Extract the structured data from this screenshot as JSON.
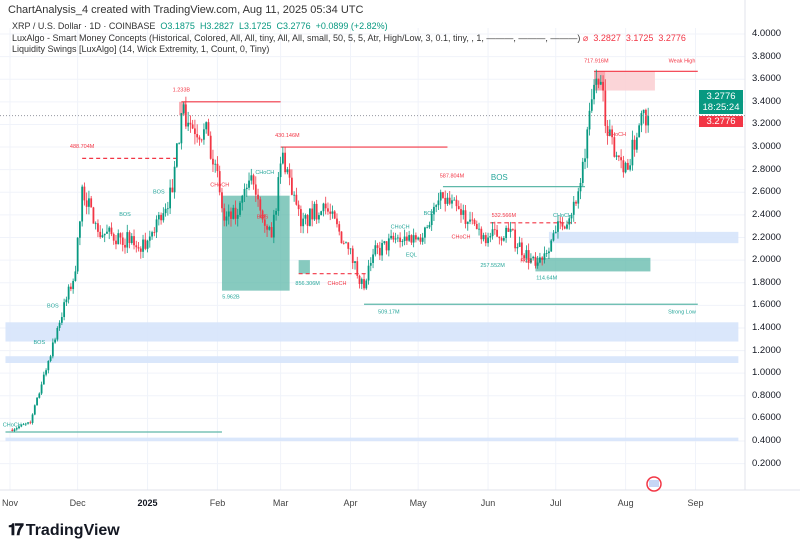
{
  "header": {
    "title": "ChartAnalysis_4 created with TradingView.com, Aug 11, 2025 05:34 UTC",
    "symbol": "XRP / U.S. Dollar · 1D · COINBASE",
    "open": "O3.1875",
    "high": "H3.2827",
    "low": "L3.1725",
    "close": "C3.2776",
    "change": "+0.0899 (+2.82%)",
    "indicator1": "LuxAlgo - Smart Money Concepts (Historical, Colored, All, All, tiny, All, All, small, 50, 5, 5, Atr, High/Low, 3, 0.1, tiny, , 1, ———, ———, ———)",
    "indicator1_values": [
      "3.2827",
      "3.1725",
      "3.2776"
    ],
    "indicator2": "Liquidity Swings [LuxAlgo] (14, Wick Extremity, 1, Count, 0, Tiny)"
  },
  "price_tag": {
    "price": "3.2776",
    "countdown": "18:25:24",
    "indicator_price": "3.2776"
  },
  "colors": {
    "up": "#089981",
    "down": "#f23645",
    "zone_blue": "#d6e4fb",
    "zone_teal": "#8fcfc4"
  },
  "footer": {
    "brand": "TradingView"
  },
  "chart_data": {
    "type": "candlestick",
    "title": "XRP / U.S. Dollar · 1D · COINBASE",
    "x_ticks": [
      {
        "date": "2024-11-01",
        "label": "Nov"
      },
      {
        "date": "2024-12-01",
        "label": "Dec"
      },
      {
        "date": "2025-01-01",
        "label": "2025",
        "bold": true
      },
      {
        "date": "2025-02-01",
        "label": "Feb"
      },
      {
        "date": "2025-03-01",
        "label": "Mar"
      },
      {
        "date": "2025-04-01",
        "label": "Apr"
      },
      {
        "date": "2025-05-01",
        "label": "May"
      },
      {
        "date": "2025-06-01",
        "label": "Jun"
      },
      {
        "date": "2025-07-01",
        "label": "Jul"
      },
      {
        "date": "2025-08-01",
        "label": "Aug"
      },
      {
        "date": "2025-09-01",
        "label": "Sep"
      }
    ],
    "y_ticks": [
      "4.0000",
      "3.8000",
      "3.6000",
      "3.4000",
      "3.2000",
      "3.0000",
      "2.8000",
      "2.6000",
      "2.4000",
      "2.2000",
      "2.0000",
      "1.8000",
      "1.6000",
      "1.4000",
      "1.2000",
      "1.0000",
      "0.8000",
      "0.6000",
      "0.4000",
      "0.2000"
    ],
    "ylim": [
      0.2,
      4.0
    ],
    "xlim": [
      "2024-10-30",
      "2025-09-20"
    ],
    "grid": true,
    "close_path": [
      [
        "2024-11-01",
        0.5
      ],
      [
        "2024-11-10",
        0.56
      ],
      [
        "2024-11-15",
        0.9
      ],
      [
        "2024-11-22",
        1.4
      ],
      [
        "2024-11-30",
        1.9
      ],
      [
        "2024-12-03",
        2.65
      ],
      [
        "2024-12-10",
        2.25
      ],
      [
        "2024-12-20",
        2.2
      ],
      [
        "2024-12-31",
        2.1
      ],
      [
        "2025-01-06",
        2.4
      ],
      [
        "2025-01-12",
        2.6
      ],
      [
        "2025-01-16",
        3.3
      ],
      [
        "2025-01-20",
        3.2
      ],
      [
        "2025-01-28",
        3.1
      ],
      [
        "2025-02-02",
        2.6
      ],
      [
        "2025-02-04",
        2.35
      ],
      [
        "2025-02-10",
        2.4
      ],
      [
        "2025-02-16",
        2.75
      ],
      [
        "2025-02-25",
        2.2
      ],
      [
        "2025-03-02",
        2.95
      ],
      [
        "2025-03-10",
        2.3
      ],
      [
        "2025-03-20",
        2.5
      ],
      [
        "2025-03-31",
        2.1
      ],
      [
        "2025-04-07",
        1.75
      ],
      [
        "2025-04-11",
        2.05
      ],
      [
        "2025-04-22",
        2.2
      ],
      [
        "2025-05-01",
        2.2
      ],
      [
        "2025-05-12",
        2.55
      ],
      [
        "2025-05-20",
        2.4
      ],
      [
        "2025-06-01",
        2.2
      ],
      [
        "2025-06-10",
        2.25
      ],
      [
        "2025-06-22",
        1.95
      ],
      [
        "2025-07-01",
        2.25
      ],
      [
        "2025-07-10",
        2.5
      ],
      [
        "2025-07-14",
        2.9
      ],
      [
        "2025-07-18",
        3.55
      ],
      [
        "2025-07-22",
        3.5
      ],
      [
        "2025-07-24",
        3.1
      ],
      [
        "2025-08-02",
        2.8
      ],
      [
        "2025-08-08",
        3.3
      ],
      [
        "2025-08-11",
        3.28
      ]
    ],
    "last_price": 3.2776,
    "zones": [
      {
        "type": "red",
        "from": "2025-01-15",
        "to": "2025-01-18",
        "top": 3.4,
        "bottom": 3.28
      },
      {
        "type": "teal",
        "from": "2025-02-03",
        "to": "2025-03-05",
        "top": 2.57,
        "bottom": 1.73
      },
      {
        "type": "teal",
        "from": "2025-03-09",
        "to": "2025-03-14",
        "top": 2.0,
        "bottom": 1.88
      },
      {
        "type": "teal",
        "from": "2025-06-22",
        "to": "2025-08-12",
        "top": 2.02,
        "bottom": 1.9
      },
      {
        "type": "red",
        "from": "2025-07-18",
        "to": "2025-07-23",
        "top": 3.67,
        "bottom": 3.5
      },
      {
        "type": "pink",
        "from": "2025-07-23",
        "to": "2025-08-14",
        "top": 3.67,
        "bottom": 3.5
      },
      {
        "type": "blue",
        "from": "2025-06-28",
        "to": "2025-09-20",
        "top": 2.25,
        "bottom": 2.15
      },
      {
        "type": "blue",
        "from": "2024-10-30",
        "to": "2025-09-20",
        "top": 1.45,
        "bottom": 1.28
      },
      {
        "type": "blue",
        "from": "2024-10-30",
        "to": "2025-09-20",
        "top": 1.15,
        "bottom": 1.09
      },
      {
        "type": "blue",
        "from": "2024-10-30",
        "to": "2025-09-20",
        "top": 0.43,
        "bottom": 0.4
      }
    ],
    "levels": [
      {
        "color": "red",
        "dash": false,
        "from": "2025-01-16",
        "to": "2025-03-01",
        "price": 3.4
      },
      {
        "color": "red",
        "dash": true,
        "from": "2024-12-03",
        "to": "2025-01-15",
        "price": 2.9
      },
      {
        "color": "red",
        "dash": false,
        "from": "2025-03-01",
        "to": "2025-05-14",
        "price": 3.0
      },
      {
        "color": "red",
        "dash": false,
        "from": "2025-07-18",
        "to": "2025-09-02",
        "price": 3.67
      },
      {
        "color": "teal",
        "dash": false,
        "from": "2025-05-12",
        "to": "2025-07-14",
        "price": 2.65
      },
      {
        "color": "teal",
        "dash": false,
        "from": "2025-04-07",
        "to": "2025-09-02",
        "price": 1.61
      },
      {
        "color": "teal",
        "dash": false,
        "from": "2024-10-30",
        "to": "2025-02-03",
        "price": 0.48
      },
      {
        "color": "red",
        "dash": true,
        "from": "2025-03-09",
        "to": "2025-04-09",
        "price": 1.88
      },
      {
        "color": "red",
        "dash": true,
        "from": "2025-06-02",
        "to": "2025-07-10",
        "price": 2.33
      }
    ],
    "annotations": [
      {
        "text": "1.233B",
        "color": "red",
        "date": "2025-01-16",
        "price": 3.49
      },
      {
        "text": "488.704M",
        "color": "red",
        "date": "2024-12-03",
        "price": 2.99
      },
      {
        "text": "430.146M",
        "color": "red",
        "date": "2025-03-04",
        "price": 3.09
      },
      {
        "text": "587.804M",
        "color": "red",
        "date": "2025-05-16",
        "price": 2.73
      },
      {
        "text": "BOS",
        "color": "teal",
        "date": "2025-06-06",
        "price": 2.71,
        "big": true
      },
      {
        "text": "717.916M",
        "color": "red",
        "date": "2025-07-19",
        "price": 3.75
      },
      {
        "text": "Weak High",
        "color": "red",
        "date": "2025-08-26",
        "price": 3.75
      },
      {
        "text": "5.962B",
        "color": "teal",
        "date": "2025-02-07",
        "price": 1.66
      },
      {
        "text": "856.306M",
        "color": "teal",
        "date": "2025-03-13",
        "price": 1.78
      },
      {
        "text": "CHoCH",
        "color": "red",
        "date": "2025-03-26",
        "price": 1.78
      },
      {
        "text": "509.17M",
        "color": "teal",
        "date": "2025-04-18",
        "price": 1.53
      },
      {
        "text": "Strong Low",
        "color": "teal",
        "date": "2025-08-26",
        "price": 1.53
      },
      {
        "text": "257.552M",
        "color": "teal",
        "date": "2025-06-03",
        "price": 1.94
      },
      {
        "text": "114.64M",
        "color": "teal",
        "date": "2025-06-27",
        "price": 1.83
      },
      {
        "text": "532.566M",
        "color": "red",
        "date": "2025-06-08",
        "price": 2.38
      },
      {
        "text": "ROS",
        "color": "red",
        "date": "2025-06-18",
        "price": 1.98
      },
      {
        "text": "CHoCH",
        "color": "red",
        "date": "2025-05-20",
        "price": 2.19
      },
      {
        "text": "CHoCH",
        "color": "teal",
        "date": "2025-07-04",
        "price": 2.38
      },
      {
        "text": "CHoCH",
        "color": "red",
        "date": "2025-07-28",
        "price": 3.1
      },
      {
        "text": "CHoCH",
        "color": "teal",
        "date": "2025-04-23",
        "price": 2.28
      },
      {
        "text": "EQL",
        "color": "teal",
        "date": "2025-04-28",
        "price": 2.03
      },
      {
        "text": "BOS",
        "color": "teal",
        "date": "2025-05-06",
        "price": 2.4
      },
      {
        "text": "BOS",
        "color": "teal",
        "date": "2025-01-06",
        "price": 2.59
      },
      {
        "text": "BOS",
        "color": "teal",
        "date": "2024-12-22",
        "price": 2.39
      },
      {
        "text": "CHoCH",
        "color": "teal",
        "date": "2025-02-22",
        "price": 2.76
      },
      {
        "text": "CHoCH",
        "color": "red",
        "date": "2025-02-02",
        "price": 2.65
      },
      {
        "text": "BOS",
        "color": "red",
        "date": "2025-02-21",
        "price": 2.37
      },
      {
        "text": "BOS",
        "color": "teal",
        "date": "2024-11-20",
        "price": 1.58
      },
      {
        "text": "BOS",
        "color": "teal",
        "date": "2024-11-14",
        "price": 1.26
      },
      {
        "text": "CHoCH",
        "color": "teal",
        "date": "2024-11-02",
        "price": 0.53
      }
    ]
  }
}
